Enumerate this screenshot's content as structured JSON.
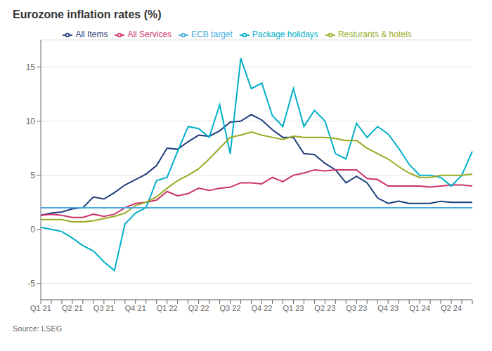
{
  "chart_data": {
    "type": "line",
    "title": "Eurozone inflation rates (%)",
    "annotations": [
      "Source: LSEG"
    ],
    "categories": [
      "Q1 21",
      null,
      null,
      "Q2 21",
      null,
      null,
      "Q3 21",
      null,
      null,
      "Q4 21",
      null,
      null,
      "Q1 22",
      null,
      null,
      "Q2 22",
      null,
      null,
      "Q3 22",
      null,
      null,
      "Q4 22",
      null,
      null,
      "Q1 23",
      null,
      null,
      "Q2 23",
      null,
      null,
      "Q3 23",
      null,
      null,
      "Q4 23",
      null,
      null,
      "Q1 24",
      null,
      null,
      "Q2 24",
      null,
      null
    ],
    "series": [
      {
        "name": "All Items",
        "color": "#1f3d7a",
        "values": [
          1.3,
          1.5,
          1.6,
          1.9,
          2.0,
          3.0,
          2.8,
          3.4,
          4.1,
          4.6,
          5.1,
          5.9,
          7.5,
          7.4,
          8.1,
          8.7,
          8.6,
          9.1,
          9.9,
          10.0,
          10.6,
          10.1,
          9.2,
          8.5,
          8.5,
          7.0,
          6.9,
          6.1,
          5.5,
          4.3,
          4.9,
          4.3,
          2.9,
          2.4,
          2.6,
          2.4,
          2.4,
          2.4,
          2.6,
          2.5,
          2.5,
          2.5
        ]
      },
      {
        "name": "All Services",
        "color": "#cc3366",
        "values": [
          1.3,
          1.4,
          1.3,
          1.1,
          1.1,
          1.4,
          1.2,
          1.4,
          2.0,
          2.4,
          2.5,
          2.7,
          3.5,
          3.1,
          3.3,
          3.8,
          3.6,
          3.8,
          3.9,
          4.3,
          4.3,
          4.2,
          4.8,
          4.4,
          5.0,
          5.2,
          5.5,
          5.4,
          5.5,
          5.5,
          5.5,
          4.7,
          4.6,
          4.0,
          4.0,
          4.0,
          4.0,
          3.9,
          4.0,
          4.1,
          4.1,
          4.0
        ]
      },
      {
        "name": "Package holidays",
        "color": "#00b0c8",
        "values": [
          0.2,
          0.0,
          -0.2,
          -0.8,
          -1.5,
          -2.0,
          -3.0,
          -3.8,
          0.5,
          1.5,
          2.0,
          4.5,
          4.8,
          7.2,
          9.5,
          9.3,
          8.5,
          11.5,
          7.0,
          15.8,
          13.0,
          13.5,
          10.5,
          9.5,
          13.0,
          9.5,
          11.0,
          10.0,
          7.0,
          6.5,
          9.8,
          8.5,
          9.5,
          8.8,
          7.5,
          6.0,
          5.0,
          5.0,
          4.8,
          4.0,
          5.0,
          7.2
        ]
      },
      {
        "name": "Resturants & hotels",
        "color": "#99aa22",
        "values": [
          0.9,
          0.9,
          0.9,
          0.7,
          0.7,
          0.8,
          1.0,
          1.2,
          1.5,
          2.2,
          2.5,
          3.0,
          3.8,
          4.5,
          5.0,
          5.6,
          6.5,
          7.5,
          8.5,
          8.7,
          9.0,
          8.7,
          8.5,
          8.3,
          8.6,
          8.5,
          8.5,
          8.5,
          8.4,
          8.2,
          8.2,
          7.5,
          7.0,
          6.5,
          5.8,
          5.2,
          4.8,
          4.8,
          5.0,
          5.0,
          5.0,
          5.1
        ]
      },
      {
        "name": "ECB target",
        "color": "#44aadd",
        "values": [
          2.0,
          2.0,
          2.0,
          2.0,
          2.0,
          2.0,
          2.0,
          2.0,
          2.0,
          2.0,
          2.0,
          2.0,
          2.0,
          2.0,
          2.0,
          2.0,
          2.0,
          2.0,
          2.0,
          2.0,
          2.0,
          2.0,
          2.0,
          2.0,
          2.0,
          2.0,
          2.0,
          2.0,
          2.0,
          2.0,
          2.0,
          2.0,
          2.0,
          2.0,
          2.0,
          2.0,
          2.0,
          2.0,
          2.0,
          2.0,
          2.0,
          2.0
        ]
      }
    ],
    "ylim": [
      -6.5,
      17.5
    ],
    "yticks": [
      -5,
      0,
      5,
      10,
      15
    ],
    "grid": true,
    "legend": "top"
  }
}
